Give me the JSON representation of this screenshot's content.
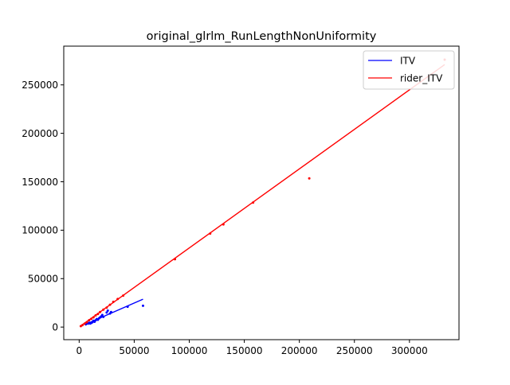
{
  "chart_data": {
    "type": "scatter",
    "title": "original_glrlm_RunLengthNonUniformity",
    "xlabel": "",
    "ylabel": "",
    "xlim": [
      -14000,
      345000
    ],
    "ylim": [
      -13000,
      290000
    ],
    "x_ticks": [
      0,
      50000,
      100000,
      150000,
      200000,
      250000,
      300000
    ],
    "y_ticks": [
      0,
      50000,
      100000,
      150000,
      200000,
      250000
    ],
    "grid": false,
    "legend_position": "top-right",
    "series": [
      {
        "name": "ITV",
        "color": "#0000ff",
        "fit_line": [
          [
            5000,
            2400
          ],
          [
            58000,
            28800
          ]
        ],
        "points": [
          [
            6000,
            2800
          ],
          [
            8000,
            3500
          ],
          [
            9000,
            4500
          ],
          [
            10000,
            3600
          ],
          [
            11000,
            4200
          ],
          [
            12000,
            5000
          ],
          [
            13000,
            6500
          ],
          [
            14000,
            5500
          ],
          [
            15000,
            7000
          ],
          [
            16000,
            8200
          ],
          [
            17000,
            7500
          ],
          [
            18000,
            9000
          ],
          [
            19000,
            10000
          ],
          [
            20000,
            11000
          ],
          [
            21000,
            12500
          ],
          [
            22000,
            10500
          ],
          [
            25000,
            15000
          ],
          [
            26000,
            17000
          ],
          [
            28000,
            14000
          ],
          [
            29000,
            15500
          ],
          [
            44000,
            21000
          ],
          [
            58000,
            22000
          ]
        ]
      },
      {
        "name": "rider_ITV",
        "color": "#ff0000",
        "fit_line": [
          [
            1000,
            900
          ],
          [
            332000,
            271000
          ]
        ],
        "points": [
          [
            1500,
            1000
          ],
          [
            3000,
            2000
          ],
          [
            5000,
            3500
          ],
          [
            7000,
            5000
          ],
          [
            9000,
            7000
          ],
          [
            11000,
            8500
          ],
          [
            13000,
            10000
          ],
          [
            15000,
            12000
          ],
          [
            17000,
            13500
          ],
          [
            19000,
            15500
          ],
          [
            22000,
            18000
          ],
          [
            25000,
            20000
          ],
          [
            28000,
            23000
          ],
          [
            31000,
            26000
          ],
          [
            35000,
            29000
          ],
          [
            40000,
            32500
          ],
          [
            87000,
            70000
          ],
          [
            119000,
            96500
          ],
          [
            131000,
            106000
          ],
          [
            158000,
            128500
          ],
          [
            209000,
            153500
          ],
          [
            332000,
            276000
          ]
        ]
      }
    ]
  }
}
